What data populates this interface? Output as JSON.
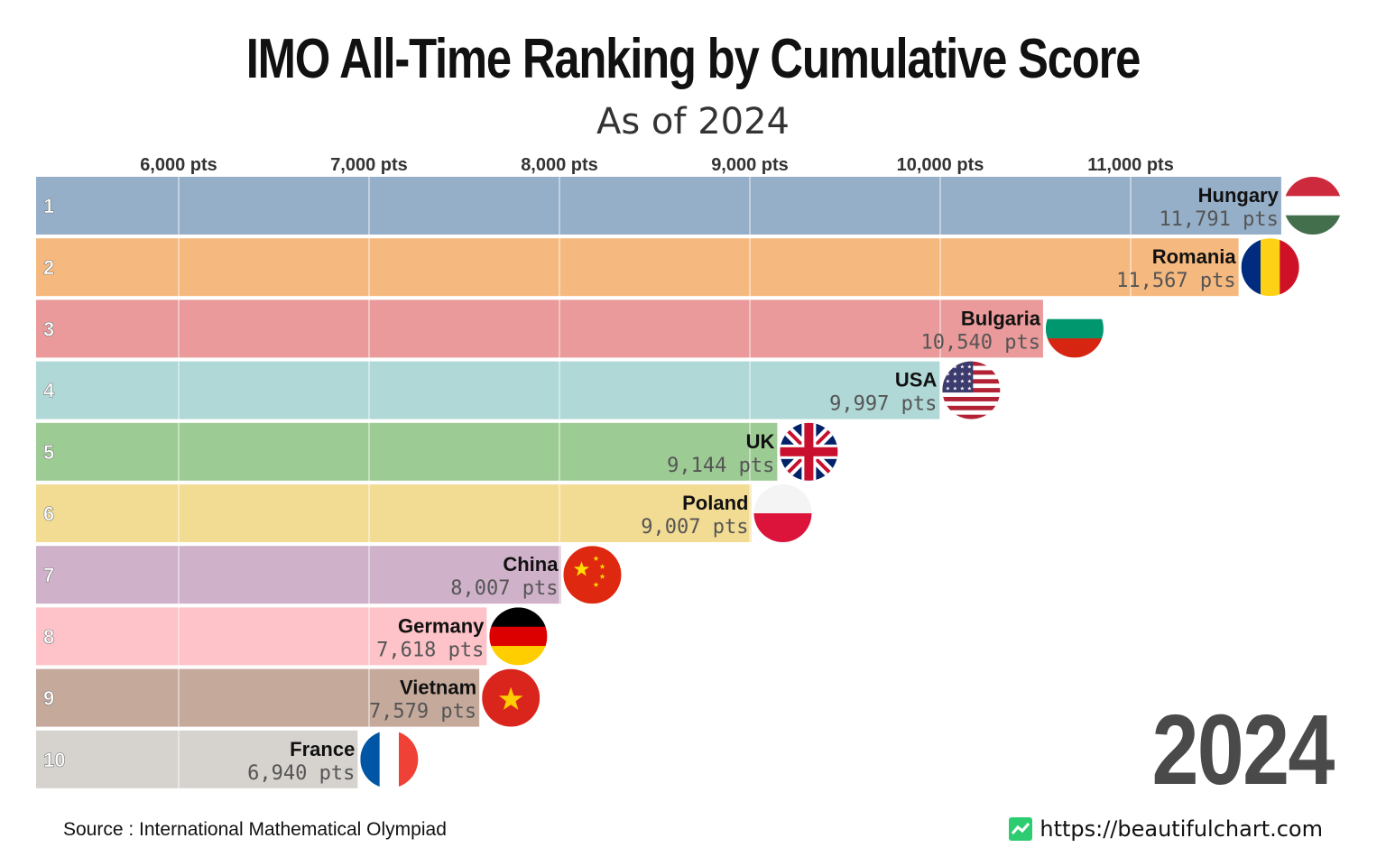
{
  "header": {
    "title": "IMO All-Time Ranking by Cumulative Score",
    "subtitle": "As of 2024"
  },
  "year_label": "2024",
  "footer": {
    "source": "Source : International Mathematical Olympiad",
    "credit": "https://beautifulchart.com"
  },
  "chart_data": {
    "type": "bar",
    "orientation": "horizontal",
    "title": "IMO All-Time Ranking by Cumulative Score",
    "subtitle": "As of 2024",
    "xlim": [
      5250,
      11800
    ],
    "x_ticks": [
      6000,
      7000,
      8000,
      9000,
      10000,
      11000
    ],
    "x_tick_labels": [
      "6,000 pts",
      "7,000 pts",
      "8,000 pts",
      "9,000 pts",
      "10,000 pts",
      "11,000 pts"
    ],
    "axis_position": "top",
    "grid": true,
    "unit": "pts",
    "bars": [
      {
        "rank": "1",
        "country": "Hungary",
        "value": 11791,
        "label": "11,791 pts",
        "color": "#95afc9",
        "flag": "hungary-flag"
      },
      {
        "rank": "2",
        "country": "Romania",
        "value": 11567,
        "label": "11,567 pts",
        "color": "#f5b97f",
        "flag": "romania-flag"
      },
      {
        "rank": "3",
        "country": "Bulgaria",
        "value": 10540,
        "label": "10,540 pts",
        "color": "#ea9a9a",
        "flag": "bulgaria-flag"
      },
      {
        "rank": "4",
        "country": "USA",
        "value": 9997,
        "label": "9,997 pts",
        "color": "#b0d8d6",
        "flag": "usa-flag"
      },
      {
        "rank": "5",
        "country": "UK",
        "value": 9144,
        "label": "9,144 pts",
        "color": "#9dcb94",
        "flag": "uk-flag"
      },
      {
        "rank": "6",
        "country": "Poland",
        "value": 9007,
        "label": "9,007 pts",
        "color": "#f2dc94",
        "flag": "poland-flag"
      },
      {
        "rank": "7",
        "country": "China",
        "value": 8007,
        "label": "8,007 pts",
        "color": "#cfb1c9",
        "flag": "china-flag"
      },
      {
        "rank": "8",
        "country": "Germany",
        "value": 7618,
        "label": "7,618 pts",
        "color": "#fdc3c8",
        "flag": "germany-flag"
      },
      {
        "rank": "9",
        "country": "Vietnam",
        "value": 7579,
        "label": "7,579 pts",
        "color": "#c5aa9c",
        "flag": "vietnam-flag"
      },
      {
        "rank": "10",
        "country": "France",
        "value": 6940,
        "label": "6,940 pts",
        "color": "#d6d2ce",
        "flag": "france-flag"
      }
    ]
  }
}
